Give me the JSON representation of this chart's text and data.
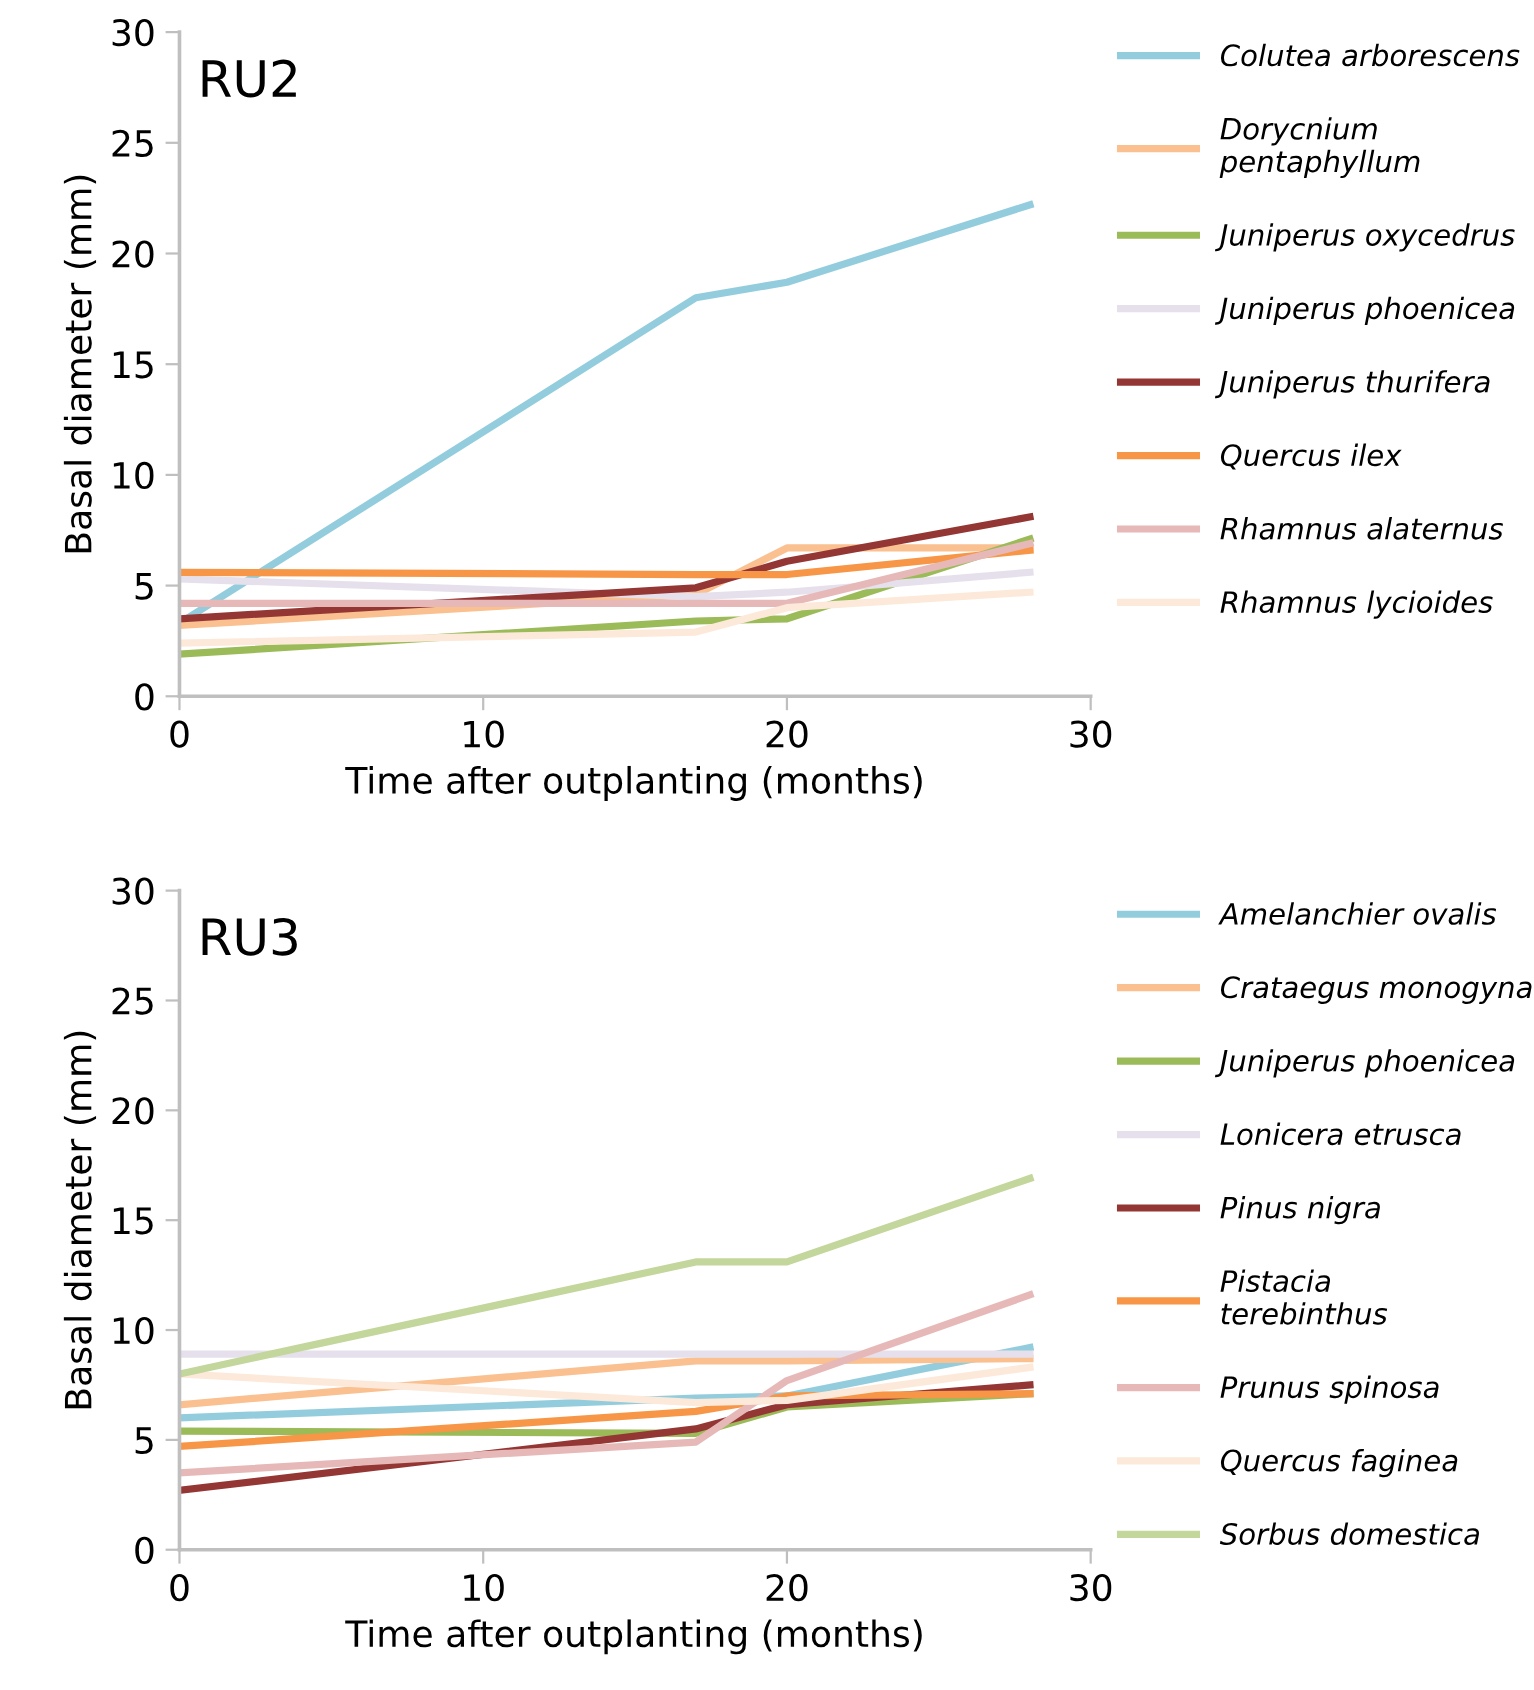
{
  "chart_data": [
    {
      "type": "line",
      "title": "RU2",
      "xlabel": "Time after outplanting (months)",
      "ylabel": "Basal diameter (mm)",
      "xlim": [
        0,
        30
      ],
      "xticks": [
        0,
        10,
        20,
        30
      ],
      "ylim": [
        0,
        30
      ],
      "yticks": [
        0,
        5,
        10,
        15,
        20,
        25,
        30
      ],
      "grid": false,
      "legend": "right",
      "marker": "none",
      "line_style": "solid",
      "x": [
        0,
        17,
        20,
        28
      ],
      "series": [
        {
          "name": "Colutea arborescens",
          "color": "#93cddd",
          "values": [
            3.3,
            18.0,
            18.7,
            22.2
          ]
        },
        {
          "name": "Dorycnium pentaphyllum",
          "color": "#fac090",
          "values": [
            3.2,
            4.6,
            6.7,
            6.7
          ]
        },
        {
          "name": "Juniperus oxycedrus",
          "color": "#9bbb59",
          "values": [
            1.9,
            3.4,
            3.5,
            7.1
          ]
        },
        {
          "name": "Juniperus phoenicea",
          "color": "#e6e0ec",
          "values": [
            5.3,
            4.5,
            4.7,
            5.6
          ]
        },
        {
          "name": "Juniperus thurifera",
          "color": "#943634",
          "values": [
            3.5,
            4.9,
            6.1,
            8.1
          ]
        },
        {
          "name": "Quercus ilex",
          "color": "#f79646",
          "values": [
            5.6,
            5.5,
            5.5,
            6.6
          ]
        },
        {
          "name": "Rhamnus alaternus",
          "color": "#e6b9b8",
          "values": [
            4.2,
            4.2,
            4.2,
            6.9
          ]
        },
        {
          "name": "Rhamnus lycioides",
          "color": "#fde9d9",
          "values": [
            2.4,
            2.9,
            4.0,
            4.7
          ]
        }
      ]
    },
    {
      "type": "line",
      "title": "RU3",
      "xlabel": "Time after outplanting (months)",
      "ylabel": "Basal diameter (mm)",
      "xlim": [
        0,
        30
      ],
      "xticks": [
        0,
        10,
        20,
        30
      ],
      "ylim": [
        0,
        30
      ],
      "yticks": [
        0,
        5,
        10,
        15,
        20,
        25,
        30
      ],
      "grid": false,
      "legend": "right",
      "marker": "none",
      "line_style": "solid",
      "x": [
        0,
        17,
        20,
        28
      ],
      "series": [
        {
          "name": "Amelanchier ovalis",
          "color": "#93cddd",
          "values": [
            6.0,
            6.9,
            7.0,
            9.2
          ]
        },
        {
          "name": "Crataegus monogyna",
          "color": "#fac090",
          "values": [
            6.6,
            8.6,
            8.6,
            8.7
          ]
        },
        {
          "name": "Juniperus phoenicea",
          "color": "#9bbb59",
          "values": [
            5.4,
            5.3,
            6.5,
            7.1
          ]
        },
        {
          "name": "Lonicera etrusca",
          "color": "#e6e0ec",
          "values": [
            8.9,
            8.9,
            8.9,
            8.9
          ]
        },
        {
          "name": "Pinus nigra",
          "color": "#943634",
          "values": [
            2.7,
            5.5,
            6.6,
            7.5
          ]
        },
        {
          "name": "Pistacia terebinthus",
          "color": "#f79646",
          "values": [
            4.7,
            6.3,
            7.0,
            7.1
          ]
        },
        {
          "name": "Prunus spinosa",
          "color": "#e6b9b8",
          "values": [
            3.5,
            4.9,
            7.7,
            11.6
          ]
        },
        {
          "name": "Quercus faginea",
          "color": "#fde9d9",
          "values": [
            8.0,
            6.7,
            6.8,
            8.3
          ]
        },
        {
          "name": "Sorbus domestica",
          "color": "#c3d69b",
          "values": [
            8.0,
            13.1,
            13.1,
            16.9
          ]
        }
      ]
    }
  ]
}
